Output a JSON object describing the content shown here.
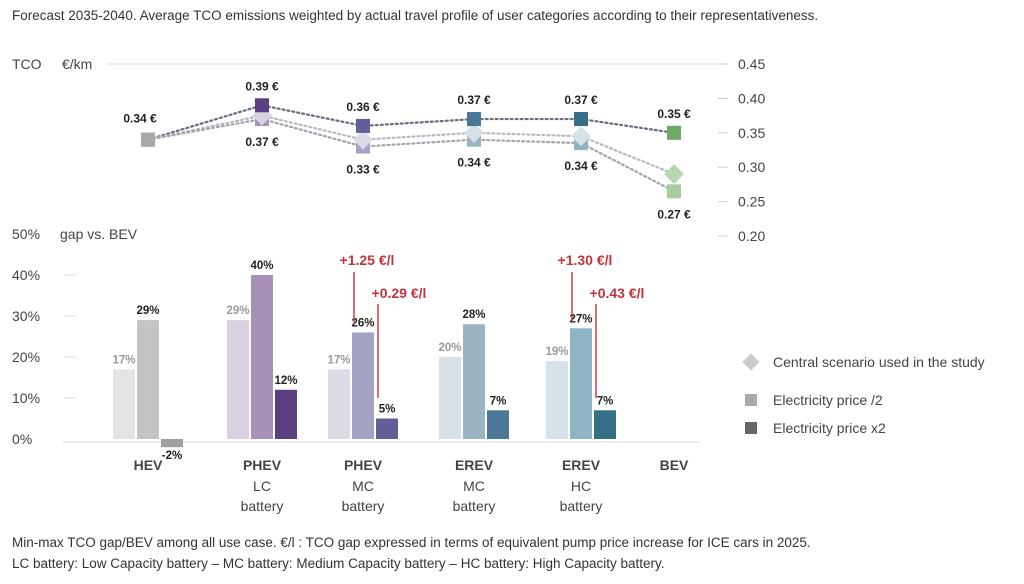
{
  "header": {
    "caption": "Forecast 2035-2040. Average TCO emissions weighted by actual travel profile of user categories according to their representativeness."
  },
  "footer": {
    "line1": "Min-max TCO gap/BEV among all use case. €/l : TCO gap expressed in terms of equivalent pump price increase for ICE cars in 2025.",
    "line2": "LC battery: Low Capacity battery – MC battery: Medium Capacity  battery – HC battery: High Capacity battery."
  },
  "chart_data": {
    "categories": [
      {
        "name": "HEV",
        "sub1": "",
        "sub2": ""
      },
      {
        "name": "PHEV",
        "sub1": "LC",
        "sub2": "battery"
      },
      {
        "name": "PHEV",
        "sub1": "MC",
        "sub2": "battery"
      },
      {
        "name": "EREV",
        "sub1": "MC",
        "sub2": "battery"
      },
      {
        "name": "EREV",
        "sub1": "HC",
        "sub2": "battery"
      },
      {
        "name": "BEV",
        "sub1": "",
        "sub2": ""
      }
    ],
    "top": {
      "type": "line",
      "axis_label": "TCO",
      "unit_label": "€/km",
      "ylim": [
        0.2,
        0.45
      ],
      "ticks": [
        "0.45",
        "0.40",
        "0.35",
        "0.30",
        "0.25",
        "0.20"
      ],
      "tick_values": [
        0.45,
        0.4,
        0.35,
        0.3,
        0.25,
        0.2
      ],
      "series": [
        {
          "name": "Electricity price x2",
          "values": [
            0.34,
            0.39,
            0.36,
            0.37,
            0.37,
            0.35
          ]
        },
        {
          "name": "Central scenario used in the study",
          "values": [
            0.34,
            0.375,
            0.34,
            0.35,
            0.345,
            0.29
          ]
        },
        {
          "name": "Electricity price /2",
          "values": [
            0.34,
            0.37,
            0.33,
            0.34,
            0.335,
            0.265
          ]
        }
      ],
      "labels_above": [
        "0.34 €",
        "0.39 €",
        "0.36 €",
        "0.37 €",
        "0.37 €",
        "0.35 €"
      ],
      "labels_below": [
        "",
        "0.37 €",
        "0.33 €",
        "0.34 €",
        "0.34 €",
        "0.27 €"
      ]
    },
    "bottom": {
      "type": "bar",
      "axis_label": "gap vs. BEV",
      "ylim": [
        0,
        50
      ],
      "ticks": [
        "50%",
        "40%",
        "30%",
        "20%",
        "10%",
        "0%"
      ],
      "tick_values": [
        50,
        40,
        30,
        20,
        10,
        0
      ],
      "series": [
        {
          "name": "Electricity price /2",
          "values": [
            17,
            29,
            17,
            20,
            19,
            null
          ]
        },
        {
          "name": "Central scenario used in the study",
          "values": [
            29,
            40,
            26,
            28,
            27,
            null
          ]
        },
        {
          "name": "Electricity price x2",
          "values": [
            -2,
            12,
            5,
            7,
            7,
            null
          ]
        }
      ],
      "value_labels": [
        [
          "17%",
          "29%",
          "-2%"
        ],
        [
          "29%",
          "40%",
          "12%"
        ],
        [
          "17%",
          "26%",
          "5%"
        ],
        [
          "20%",
          "28%",
          "7%"
        ],
        [
          "19%",
          "27%",
          "7%"
        ],
        [
          "",
          "",
          ""
        ]
      ],
      "annotations": [
        {
          "category": 2,
          "high": "+1.25 €/l",
          "low": "+0.29 €/l"
        },
        {
          "category": 4,
          "high": "+1.30 €/l",
          "low": "+0.43 €/l"
        }
      ]
    },
    "colors": {
      "hev": [
        "#e4e4e4",
        "#c4c4c4",
        "#a0a0a0"
      ],
      "phev_lc": [
        "#d9d0e2",
        "#a891b8",
        "#5c3e82"
      ],
      "phev_mc": [
        "#dcdbe7",
        "#a4a3c3",
        "#625f98"
      ],
      "erev_mc": [
        "#d6e0e7",
        "#9bb4c4",
        "#4b7896"
      ],
      "erev_hc": [
        "#d4e3e9",
        "#8fb4c4",
        "#346f87"
      ],
      "bev": [
        "#b8d6b0",
        "#a9cda0",
        "#6ea866"
      ],
      "annotation": "#c0353b",
      "axis_text": "#444444",
      "label_text": "#222222"
    },
    "legend": [
      {
        "label": "Central scenario used in the study",
        "marker": "diamond",
        "color": "#cccccc"
      },
      {
        "label": "Electricity price /2",
        "marker": "square",
        "color": "#aaaaaa"
      },
      {
        "label": "Electricity price x2",
        "marker": "square",
        "color": "#666666"
      }
    ]
  }
}
